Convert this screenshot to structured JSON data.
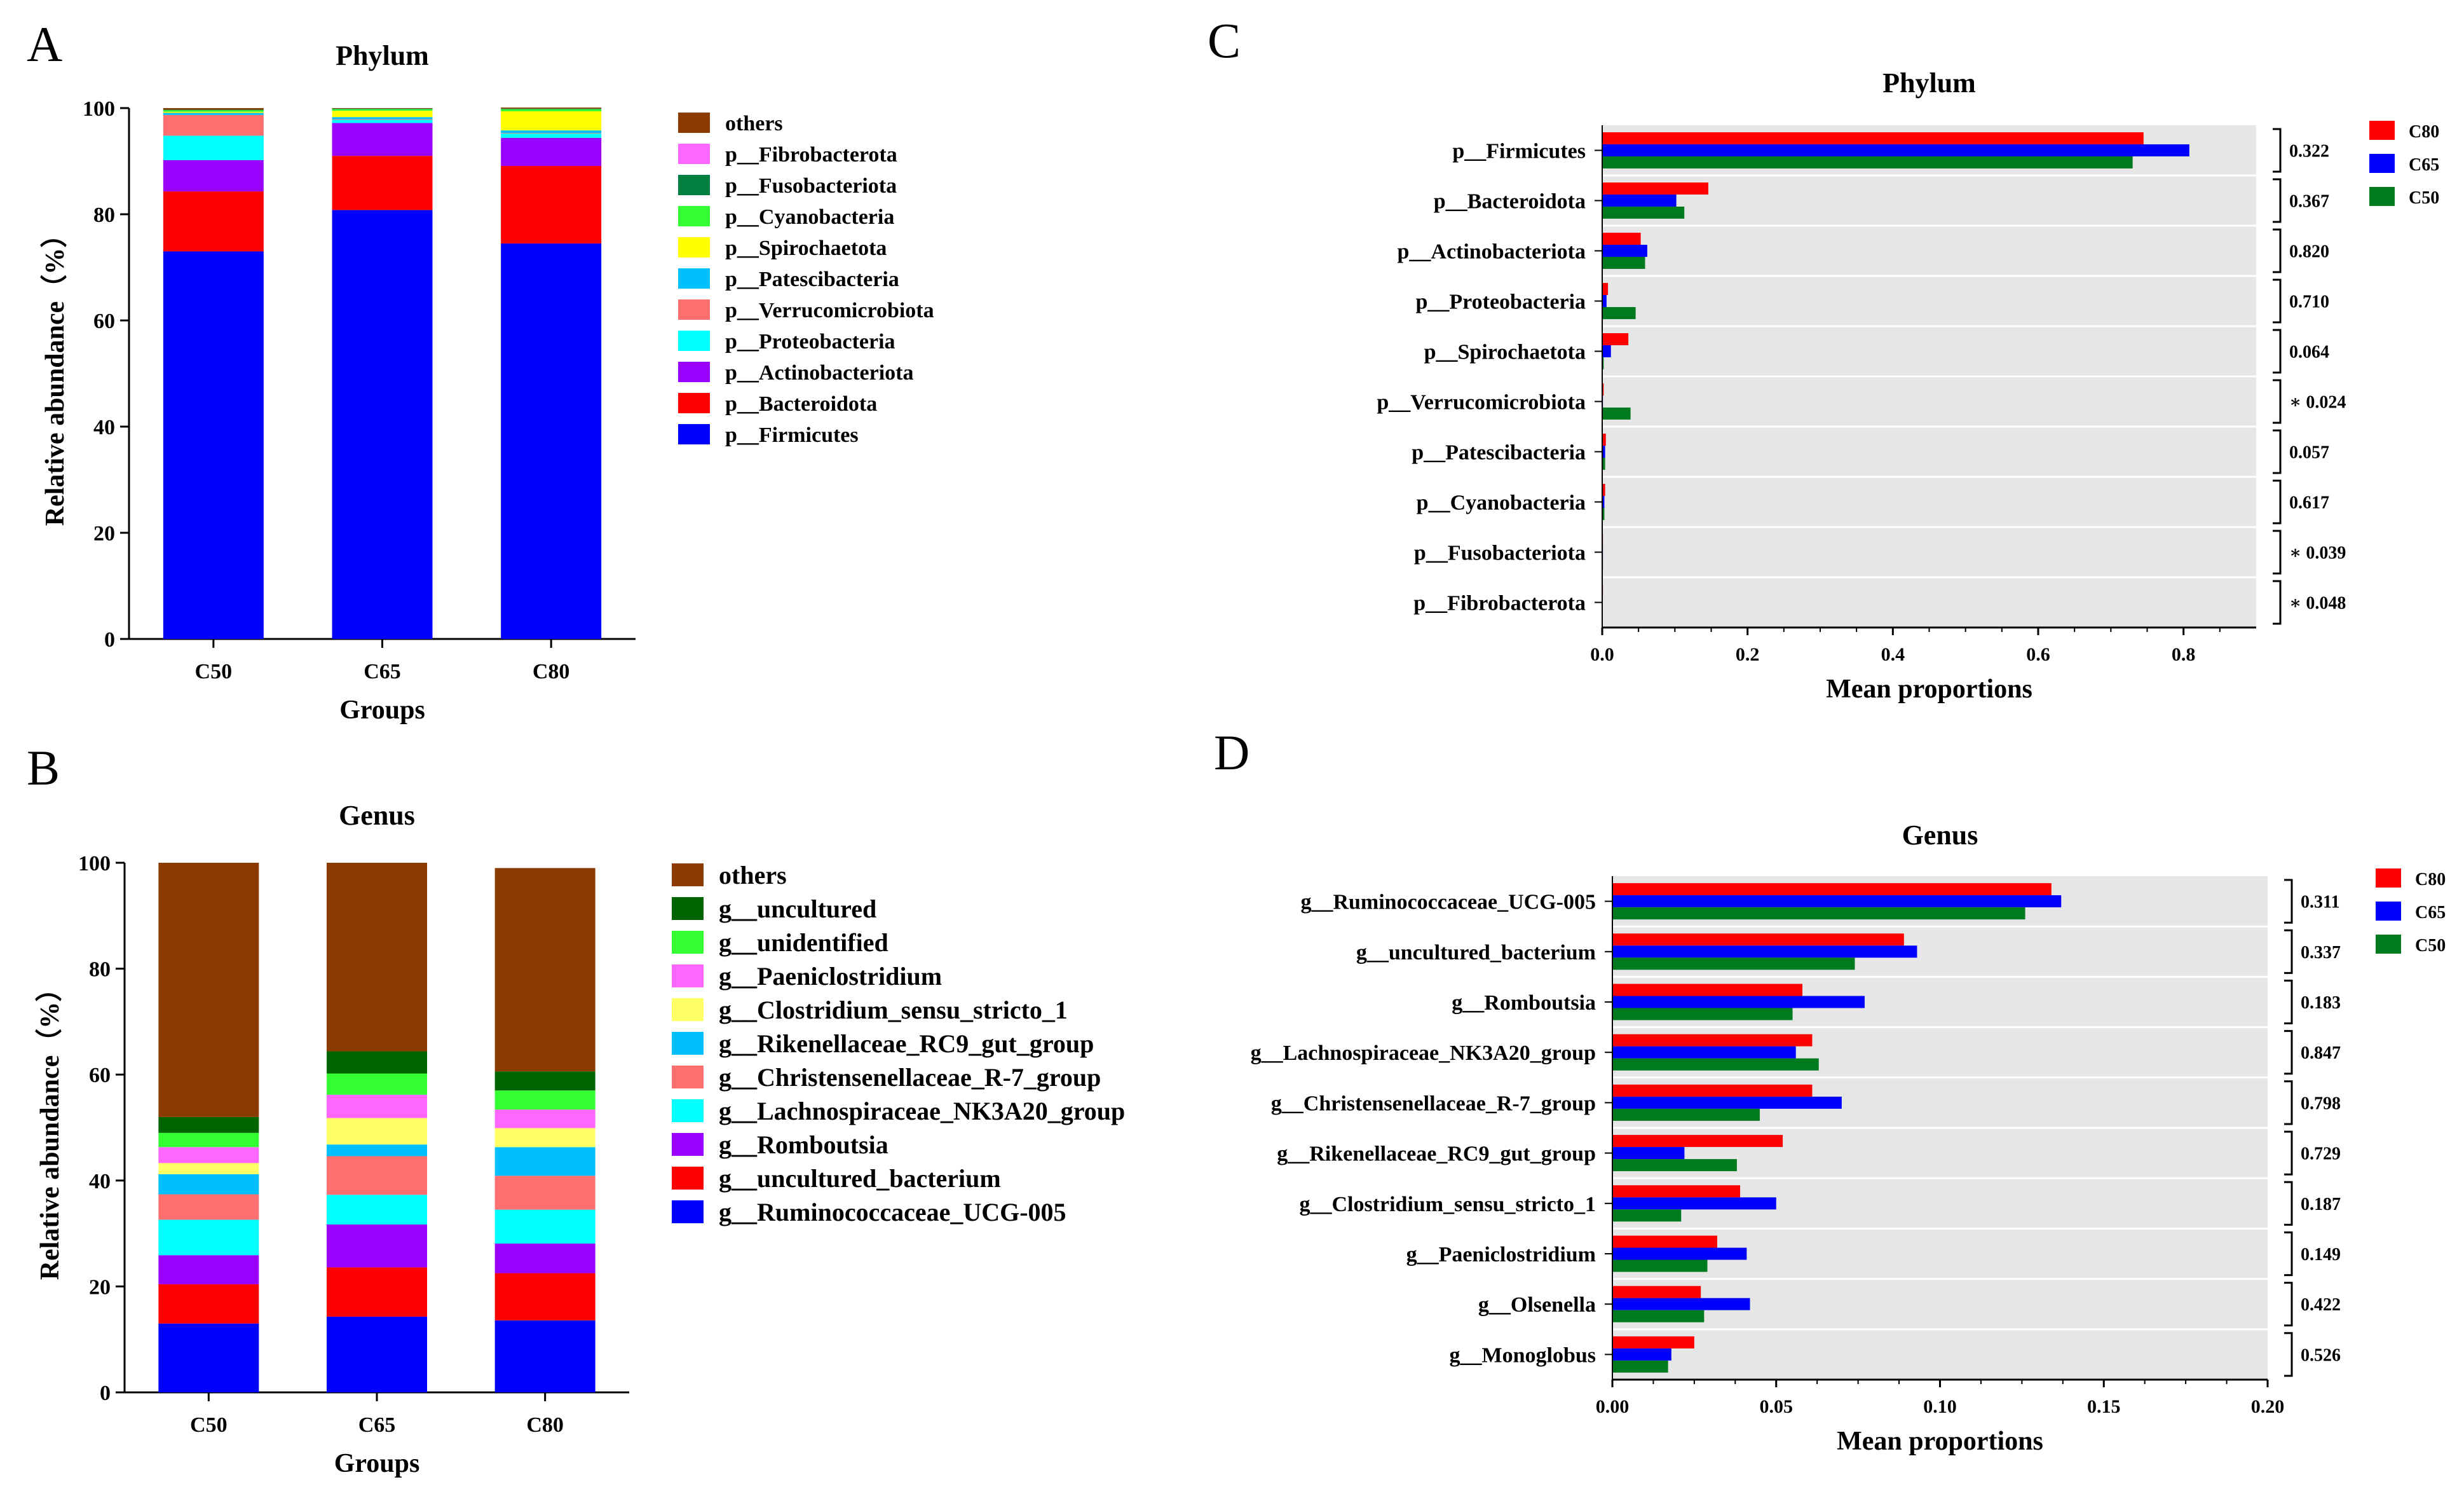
{
  "panels": {
    "A": "A",
    "B": "B",
    "C": "C",
    "D": "D"
  },
  "chart_data": [
    {
      "panel": "A",
      "type": "bar",
      "stacked": true,
      "title": "Phylum",
      "xlabel": "Groups",
      "ylabel": "Relative abundance（%）",
      "ylim": [
        0,
        100
      ],
      "yticks": [
        "0",
        "20",
        "40",
        "60",
        "80",
        "100"
      ],
      "categories": [
        "C50",
        "C65",
        "C80"
      ],
      "legend_position": "right",
      "series": [
        {
          "name": "p__Firmicutes",
          "color": "#0000ff",
          "values": [
            73.0,
            80.8,
            74.5
          ]
        },
        {
          "name": "p__Bacteroidota",
          "color": "#ff0000",
          "values": [
            11.3,
            10.2,
            14.6
          ]
        },
        {
          "name": "p__Actinobacteriota",
          "color": "#9900ff",
          "values": [
            5.9,
            6.2,
            5.3
          ]
        },
        {
          "name": "p__Proteobacteria",
          "color": "#00ffff",
          "values": [
            4.6,
            0.6,
            0.8
          ]
        },
        {
          "name": "p__Verrucomicrobiota",
          "color": "#ff6f6f",
          "values": [
            3.9,
            0.1,
            0.1
          ]
        },
        {
          "name": "p__Patescibacteria",
          "color": "#00bfff",
          "values": [
            0.4,
            0.4,
            0.5
          ]
        },
        {
          "name": "p__Spirochaetota",
          "color": "#ffff00",
          "values": [
            0.2,
            1.2,
            3.6
          ]
        },
        {
          "name": "p__Cyanobacteria",
          "color": "#33ff33",
          "values": [
            0.3,
            0.3,
            0.4
          ]
        },
        {
          "name": "p__Fusobacteriota",
          "color": "#008040",
          "values": [
            0.1,
            0.1,
            0.1
          ]
        },
        {
          "name": "p__Fibrobacterota",
          "color": "#ff66ff",
          "values": [
            0.0,
            0.0,
            0.0
          ]
        },
        {
          "name": "others",
          "color": "#8b3a00",
          "values": [
            0.3,
            0.1,
            0.2
          ]
        }
      ]
    },
    {
      "panel": "B",
      "type": "bar",
      "stacked": true,
      "title": "Genus",
      "xlabel": "Groups",
      "ylabel": "Relative abundance（%）",
      "ylim": [
        0,
        100
      ],
      "yticks": [
        "0",
        "20",
        "40",
        "60",
        "80",
        "100"
      ],
      "categories": [
        "C50",
        "C65",
        "C80"
      ],
      "legend_position": "right",
      "series": [
        {
          "name": "g__Ruminococcaceae_UCG-005",
          "color": "#0000ff",
          "values": [
            13.0,
            14.3,
            13.6
          ]
        },
        {
          "name": "g__uncultured_bacterium",
          "color": "#ff0000",
          "values": [
            7.4,
            9.3,
            8.9
          ]
        },
        {
          "name": "g__Romboutsia",
          "color": "#9900ff",
          "values": [
            5.5,
            8.1,
            5.6
          ]
        },
        {
          "name": "g__Lachnospiraceae_NK3A20_group",
          "color": "#00ffff",
          "values": [
            6.7,
            5.6,
            6.4
          ]
        },
        {
          "name": "g__Christensenellaceae_R-7_group",
          "color": "#ff6f6f",
          "values": [
            4.8,
            7.3,
            6.4
          ]
        },
        {
          "name": "g__Rikenellaceae_RC9_gut_group",
          "color": "#00bfff",
          "values": [
            3.8,
            2.2,
            5.4
          ]
        },
        {
          "name": "g__Clostridium_sensu_stricto_1",
          "color": "#ffff66",
          "values": [
            2.1,
            5.0,
            3.6
          ]
        },
        {
          "name": "g__Paeniclostridium",
          "color": "#ff66ff",
          "values": [
            3.0,
            4.4,
            3.5
          ]
        },
        {
          "name": "g__unidentified",
          "color": "#33ff33",
          "values": [
            2.7,
            4.0,
            3.6
          ]
        },
        {
          "name": "g__uncultured",
          "color": "#006400",
          "values": [
            3.0,
            4.2,
            3.6
          ]
        },
        {
          "name": "others",
          "color": "#8b3a00",
          "values": [
            48.0,
            35.6,
            38.4
          ]
        }
      ]
    },
    {
      "panel": "C",
      "type": "bar",
      "orientation": "horizontal",
      "title": "Phylum",
      "xlabel": "Mean proportions",
      "ylabel": "",
      "xlim": [
        0,
        0.9
      ],
      "xticks": [
        "0.0",
        "0.2",
        "0.4",
        "0.6",
        "0.8"
      ],
      "legend_position": "top-right",
      "categories": [
        "p__Firmicutes",
        "p__Bacteroidota",
        "p__Actinobacteriota",
        "p__Proteobacteria",
        "p__Spirochaetota",
        "p__Verrucomicrobiota",
        "p__Patescibacteria",
        "p__Cyanobacteria",
        "p__Fusobacteriota",
        "p__Fibrobacterota"
      ],
      "p_values": [
        "0.322",
        "0.367",
        "0.820",
        "0.710",
        "0.064",
        "∗ 0.024",
        "0.057",
        "0.617",
        "∗ 0.039",
        "∗ 0.048"
      ],
      "series": [
        {
          "name": "C80",
          "color": "#ff0000",
          "values": [
            0.745,
            0.146,
            0.053,
            0.008,
            0.036,
            0.002,
            0.005,
            0.004,
            0.001,
            0.001
          ]
        },
        {
          "name": "C65",
          "color": "#0000ff",
          "values": [
            0.808,
            0.102,
            0.062,
            0.006,
            0.012,
            0.001,
            0.004,
            0.003,
            0.001,
            0.0
          ]
        },
        {
          "name": "C50",
          "color": "#007a1f",
          "values": [
            0.73,
            0.113,
            0.059,
            0.046,
            0.002,
            0.039,
            0.004,
            0.003,
            0.001,
            0.0
          ]
        }
      ]
    },
    {
      "panel": "D",
      "type": "bar",
      "orientation": "horizontal",
      "title": "Genus",
      "xlabel": "Mean proportions",
      "ylabel": "",
      "xlim": [
        0,
        0.2
      ],
      "xticks": [
        "0.00",
        "0.05",
        "0.10",
        "0.15",
        "0.20"
      ],
      "legend_position": "top-right",
      "categories": [
        "g__Ruminococcaceae_UCG-005",
        "g__uncultured_bacterium",
        "g__Romboutsia",
        "g__Lachnospiraceae_NK3A20_group",
        "g__Christensenellaceae_R-7_group",
        "g__Rikenellaceae_RC9_gut_group",
        "g__Clostridium_sensu_stricto_1",
        "g__Paeniclostridium",
        "g__Olsenella",
        "g__Monoglobus"
      ],
      "p_values": [
        "0.311",
        "0.337",
        "0.183",
        "0.847",
        "0.798",
        "0.729",
        "0.187",
        "0.149",
        "0.422",
        "0.526"
      ],
      "series": [
        {
          "name": "C80",
          "color": "#ff0000",
          "values": [
            0.134,
            0.089,
            0.058,
            0.061,
            0.061,
            0.052,
            0.039,
            0.032,
            0.027,
            0.025
          ]
        },
        {
          "name": "C65",
          "color": "#0000ff",
          "values": [
            0.137,
            0.093,
            0.077,
            0.056,
            0.07,
            0.022,
            0.05,
            0.041,
            0.042,
            0.018
          ]
        },
        {
          "name": "C50",
          "color": "#007a1f",
          "values": [
            0.126,
            0.074,
            0.055,
            0.063,
            0.045,
            0.038,
            0.021,
            0.029,
            0.028,
            0.017
          ]
        }
      ]
    }
  ]
}
